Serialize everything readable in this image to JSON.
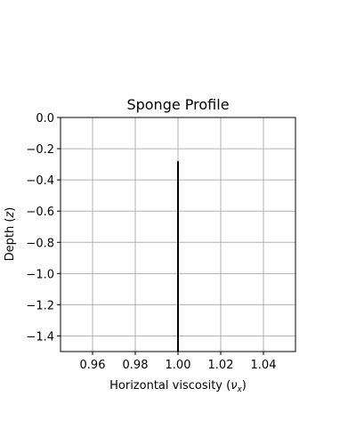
{
  "chart_data": {
    "type": "line",
    "title": "Sponge Profile",
    "xlabel_main": "Horizontal viscosity (",
    "xlabel_symbol": "ν",
    "xlabel_sub": "x",
    "xlabel_end": ")",
    "ylabel_main": "Depth (",
    "ylabel_symbol": "z",
    "ylabel_end": ")",
    "xlim": [
      0.945,
      1.055
    ],
    "ylim": [
      -1.5,
      0.0
    ],
    "xticks": [
      0.96,
      0.98,
      1.0,
      1.02,
      1.04
    ],
    "xtick_labels": [
      "0.96",
      "0.98",
      "1.00",
      "1.02",
      "1.04"
    ],
    "yticks": [
      0.0,
      -0.2,
      -0.4,
      -0.6,
      -0.8,
      -1.0,
      -1.2,
      -1.4
    ],
    "ytick_labels": [
      "0.0",
      "−0.2",
      "−0.4",
      "−0.6",
      "−0.8",
      "−1.0",
      "−1.2",
      "−1.4"
    ],
    "grid": true,
    "series": [
      {
        "x": [
          1.0,
          1.0
        ],
        "y": [
          -0.28,
          -1.5
        ],
        "color": "#000000"
      }
    ]
  }
}
